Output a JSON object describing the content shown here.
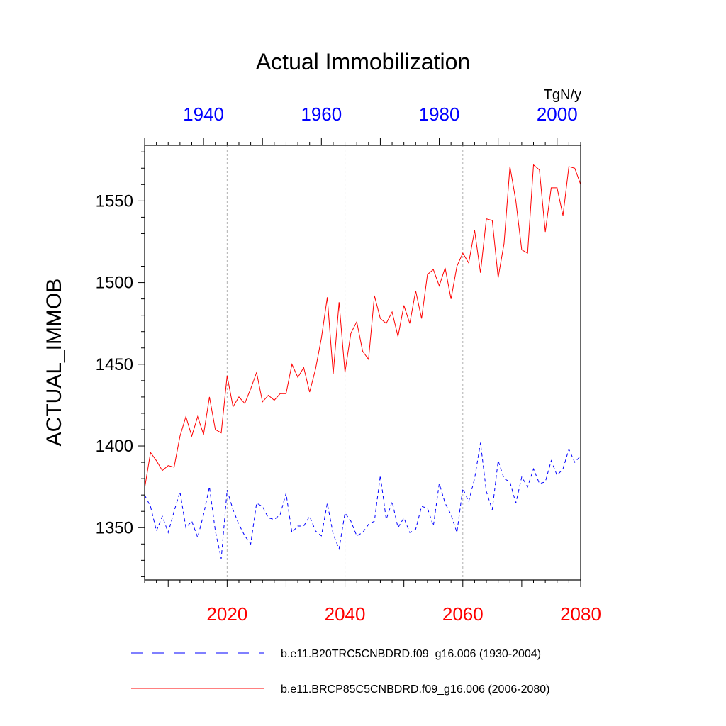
{
  "chart_data": {
    "type": "line",
    "title": "Actual Immobilization",
    "ylabel": "ACTUAL_IMMOB",
    "units": "TgN/y",
    "ylim": [
      1318,
      1584
    ],
    "y_ticks": [
      1350,
      1400,
      1450,
      1500,
      1550
    ],
    "top_axis": {
      "range": [
        1930,
        2004
      ],
      "ticks": [
        1940,
        1960,
        1980,
        2000
      ],
      "color": "#0000ff"
    },
    "bottom_axis": {
      "range": [
        2006,
        2080
      ],
      "ticks": [
        2020,
        2040,
        2060,
        2080
      ],
      "color": "#ff0000"
    },
    "gridlines_x": [
      2020,
      2040,
      2060
    ],
    "series": [
      {
        "name": "b.e11.B20TRC5CNBDRD.f09_g16.006 (1930-2004)",
        "axis": "top",
        "color": "#0000ff",
        "style": "dashed",
        "x_start": 1930,
        "values": [
          1370,
          1363,
          1348,
          1357,
          1347,
          1360,
          1372,
          1350,
          1354,
          1344,
          1358,
          1375,
          1348,
          1331,
          1373,
          1361,
          1352,
          1345,
          1340,
          1365,
          1363,
          1356,
          1355,
          1358,
          1371,
          1347,
          1351,
          1351,
          1357,
          1348,
          1345,
          1365,
          1346,
          1337,
          1359,
          1354,
          1345,
          1347,
          1352,
          1354,
          1382,
          1355,
          1366,
          1350,
          1356,
          1347,
          1349,
          1363,
          1362,
          1351,
          1377,
          1365,
          1358,
          1347,
          1374,
          1366,
          1380,
          1402,
          1372,
          1361,
          1391,
          1380,
          1378,
          1365,
          1381,
          1375,
          1386,
          1377,
          1378,
          1391,
          1382,
          1386,
          1398,
          1390,
          1394
        ]
      },
      {
        "name": "b.e11.BRCP85C5CNBDRD.f09_g16.006 (2006-2080)",
        "axis": "bottom",
        "color": "#ff0000",
        "style": "solid",
        "x_start": 2006,
        "values": [
          1374,
          1396,
          1391,
          1385,
          1388,
          1387,
          1406,
          1418,
          1406,
          1418,
          1407,
          1430,
          1410,
          1408,
          1443,
          1424,
          1430,
          1426,
          1435,
          1445,
          1427,
          1431,
          1428,
          1432,
          1432,
          1450,
          1442,
          1448,
          1433,
          1447,
          1466,
          1491,
          1444,
          1488,
          1445,
          1469,
          1476,
          1458,
          1453,
          1492,
          1478,
          1475,
          1482,
          1467,
          1486,
          1475,
          1495,
          1478,
          1505,
          1508,
          1498,
          1509,
          1490,
          1510,
          1518,
          1512,
          1532,
          1506,
          1539,
          1538,
          1503,
          1524,
          1571,
          1550,
          1520,
          1518,
          1572,
          1569,
          1531,
          1558,
          1558,
          1541,
          1571,
          1570,
          1560
        ]
      }
    ]
  }
}
